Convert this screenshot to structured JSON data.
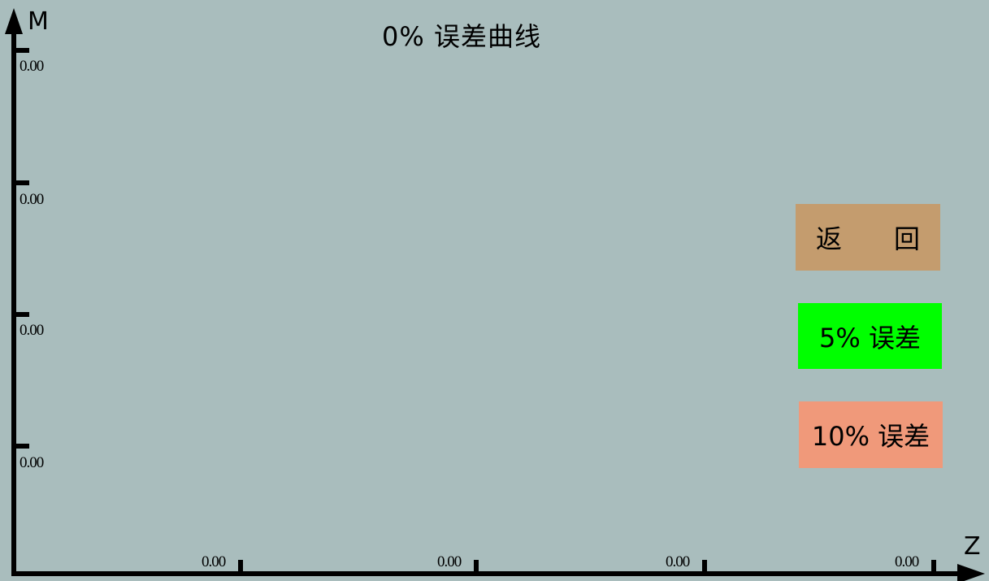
{
  "title": "0% 误差曲线",
  "axes": {
    "y_label": "M",
    "x_label": "Z",
    "y_ticks": [
      "0.00",
      "0.00",
      "0.00",
      "0.00"
    ],
    "x_ticks": [
      "0.00",
      "0.00",
      "0.00",
      "0.00"
    ]
  },
  "buttons": {
    "back": "返　　回",
    "error_5": "5% 误差",
    "error_10": "10% 误差"
  },
  "colors": {
    "background": "#a9bdbd",
    "back_button": "#c49c6e",
    "error_5_button": "#00ff00",
    "error_10_button": "#f0997a",
    "axis": "#000000"
  }
}
